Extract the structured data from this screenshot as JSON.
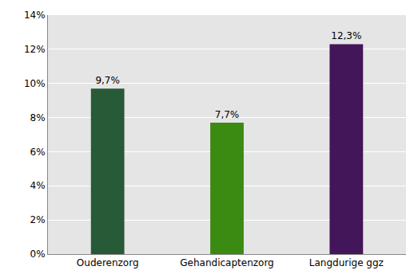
{
  "chart_data": {
    "type": "bar",
    "categories": [
      "Ouderenzorg",
      "Gehandicaptenzorg",
      "Langdurige ggz"
    ],
    "values": [
      9.7,
      7.7,
      12.3
    ],
    "value_labels": [
      "9,7%",
      "7,7%",
      "12,3%"
    ],
    "colors": [
      "#275a37",
      "#3b8a12",
      "#431559"
    ],
    "ylim": [
      0,
      14
    ],
    "yticks": [
      {
        "value": 0,
        "label": "0%"
      },
      {
        "value": 2,
        "label": "2%"
      },
      {
        "value": 4,
        "label": "4%"
      },
      {
        "value": 6,
        "label": "6%"
      },
      {
        "value": 8,
        "label": "8%"
      },
      {
        "value": 10,
        "label": "10%"
      },
      {
        "value": 12,
        "label": "12%"
      },
      {
        "value": 14,
        "label": "14%"
      }
    ],
    "grid": true,
    "data_labels": true
  }
}
